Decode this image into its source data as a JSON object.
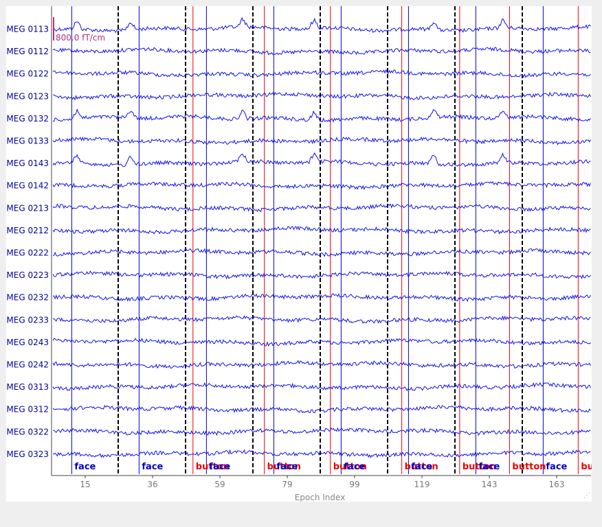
{
  "chart_data": {
    "type": "line",
    "xlabel": "Epoch Index",
    "x_ticks": [
      15,
      36,
      59,
      79,
      99,
      119,
      143,
      163
    ],
    "scale_label": "800.0 fT/cm",
    "channels": [
      "MEG 0113",
      "MEG 0112",
      "MEG 0122",
      "MEG 0123",
      "MEG 0132",
      "MEG 0133",
      "MEG 0143",
      "MEG 0142",
      "MEG 0213",
      "MEG 0212",
      "MEG 0222",
      "MEG 0223",
      "MEG 0232",
      "MEG 0233",
      "MEG 0243",
      "MEG 0242",
      "MEG 0313",
      "MEG 0312",
      "MEG 0322",
      "MEG 0323"
    ],
    "epoch_count": 8,
    "events": [
      {
        "epoch": 1,
        "frac": 0.3,
        "label": "face"
      },
      {
        "epoch": 2,
        "frac": 0.3,
        "label": "face"
      },
      {
        "epoch": 3,
        "frac": 0.1,
        "label": "button"
      },
      {
        "epoch": 3,
        "frac": 0.3,
        "label": "face"
      },
      {
        "epoch": 4,
        "frac": 0.16,
        "label": "button"
      },
      {
        "epoch": 4,
        "frac": 0.3,
        "label": "face"
      },
      {
        "epoch": 5,
        "frac": 0.14,
        "label": "button"
      },
      {
        "epoch": 5,
        "frac": 0.3,
        "label": "face"
      },
      {
        "epoch": 6,
        "frac": 0.2,
        "label": "button"
      },
      {
        "epoch": 6,
        "frac": 0.3,
        "label": "face"
      },
      {
        "epoch": 7,
        "frac": 0.06,
        "label": "button"
      },
      {
        "epoch": 7,
        "frac": 0.3,
        "label": "face"
      },
      {
        "epoch": 7,
        "frac": 0.8,
        "label": "button"
      },
      {
        "epoch": 8,
        "frac": 0.3,
        "label": "face"
      },
      {
        "epoch": 8,
        "frac": 0.82,
        "label": "button"
      }
    ],
    "event_colors": {
      "face": "#0000cc",
      "button": "#ee0000"
    },
    "trace_color": "#1010ee",
    "channel_label_color": "#00009a",
    "scale_color": "#b03080",
    "epoch_boundary_color": "#000000",
    "grid": false
  }
}
